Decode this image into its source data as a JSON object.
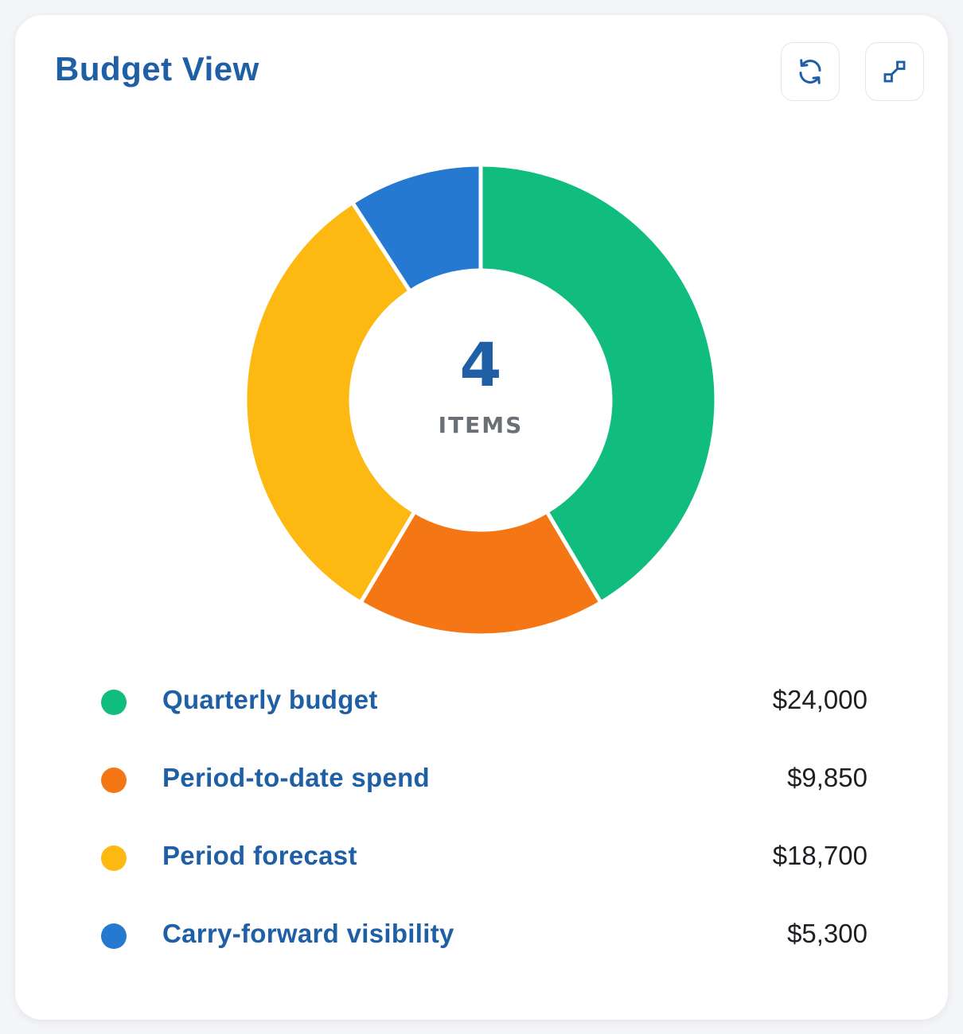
{
  "header": {
    "title": "Budget View",
    "refresh_icon": "refresh-icon",
    "expand_icon": "expand-icon"
  },
  "center": {
    "count": "4",
    "label": "ITEMS"
  },
  "colors": {
    "title": "#1f5fa6",
    "quarterly_budget": "#10bd7e",
    "period_to_date_spend": "#f57615",
    "period_forecast": "#fdb811",
    "carry_forward_visibility": "#2579d0"
  },
  "chart_data": {
    "type": "pie",
    "donut": true,
    "categories": [
      "Quarterly budget",
      "Period-to-date spend",
      "Period forecast",
      "Carry-forward visibility"
    ],
    "values": [
      24000,
      9850,
      18700,
      5300
    ],
    "value_labels": [
      "$24,000",
      "$9,850",
      "$18,700",
      "$5,300"
    ],
    "colors": [
      "#10bd7e",
      "#f57615",
      "#fdb811",
      "#2579d0"
    ],
    "legend_position": "bottom"
  }
}
